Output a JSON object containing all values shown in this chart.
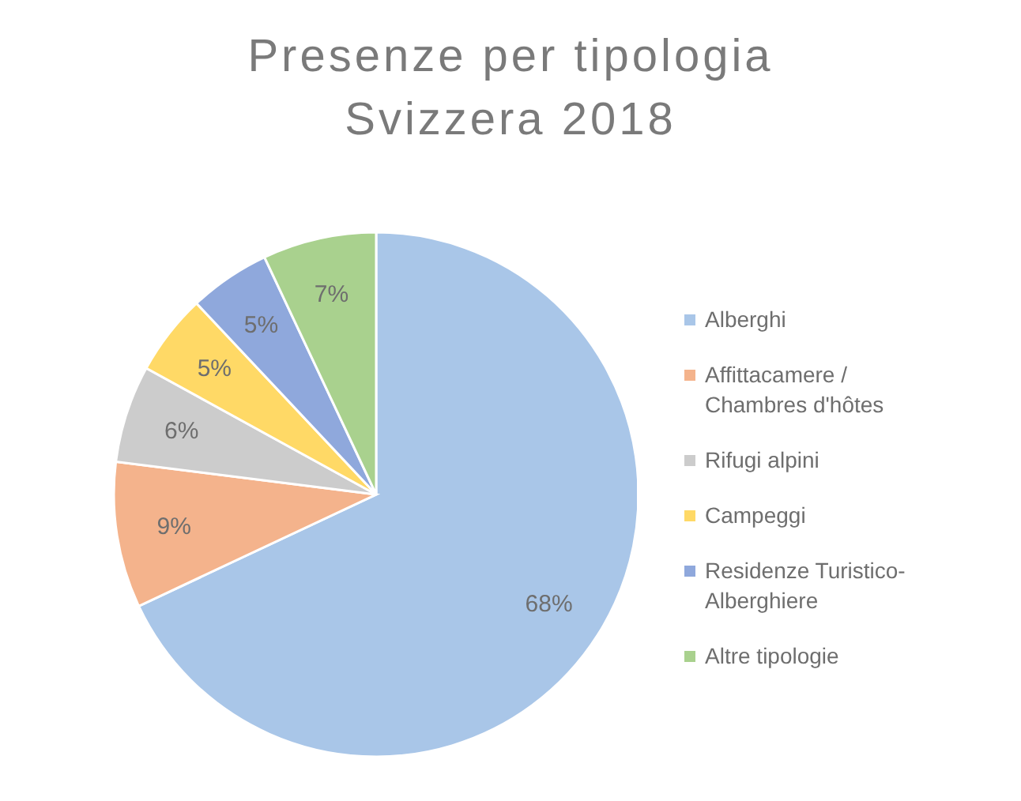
{
  "chart_data": {
    "type": "pie",
    "title": "Presenze per tipologia",
    "subtitle": "Svizzera 2018",
    "categories": [
      "Alberghi",
      "Affittacamere / Chambres d'hôtes",
      "Rifugi alpini",
      "Campeggi",
      "Residenze Turistico-Alberghiere",
      "Altre tipologie"
    ],
    "values": [
      68,
      9,
      6,
      5,
      5,
      7
    ],
    "value_labels": [
      "68%",
      "9%",
      "6%",
      "5%",
      "5%",
      "7%"
    ],
    "colors": [
      "#a9c6e8",
      "#f4b38c",
      "#cccccc",
      "#ffd966",
      "#8fa8dc",
      "#a9d18e"
    ],
    "legend": "right"
  }
}
